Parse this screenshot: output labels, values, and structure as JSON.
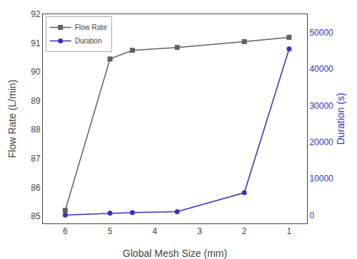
{
  "chart_data": {
    "type": "line",
    "x": [
      6,
      5,
      4.5,
      3.5,
      2,
      1
    ],
    "xlabel": "Global Mesh Size (mm)",
    "ylabel": "Flow Rate (L/min)",
    "y2label": "Duration (s)",
    "xlim": [
      6.5,
      0.6
    ],
    "xticks": [
      6,
      5,
      4,
      3,
      2,
      1
    ],
    "ylim": [
      84.75,
      92.0
    ],
    "yticks": [
      85,
      86,
      87,
      88,
      89,
      90,
      91,
      92
    ],
    "y2lim": [
      -2200,
      55000
    ],
    "y2ticks": [
      0,
      10000,
      20000,
      30000,
      40000,
      50000
    ],
    "series": [
      {
        "name": "Flow Rate",
        "color": "#606060",
        "marker": "square",
        "values": [
          85.2,
          90.45,
          90.75,
          90.85,
          91.05,
          91.2
        ]
      },
      {
        "name": "Duration",
        "color": "#3333bb",
        "marker": "circle",
        "axis": "y2",
        "values": [
          100,
          600,
          750,
          1000,
          6200,
          45500
        ]
      }
    ],
    "legend": "upper left",
    "grid": false
  }
}
